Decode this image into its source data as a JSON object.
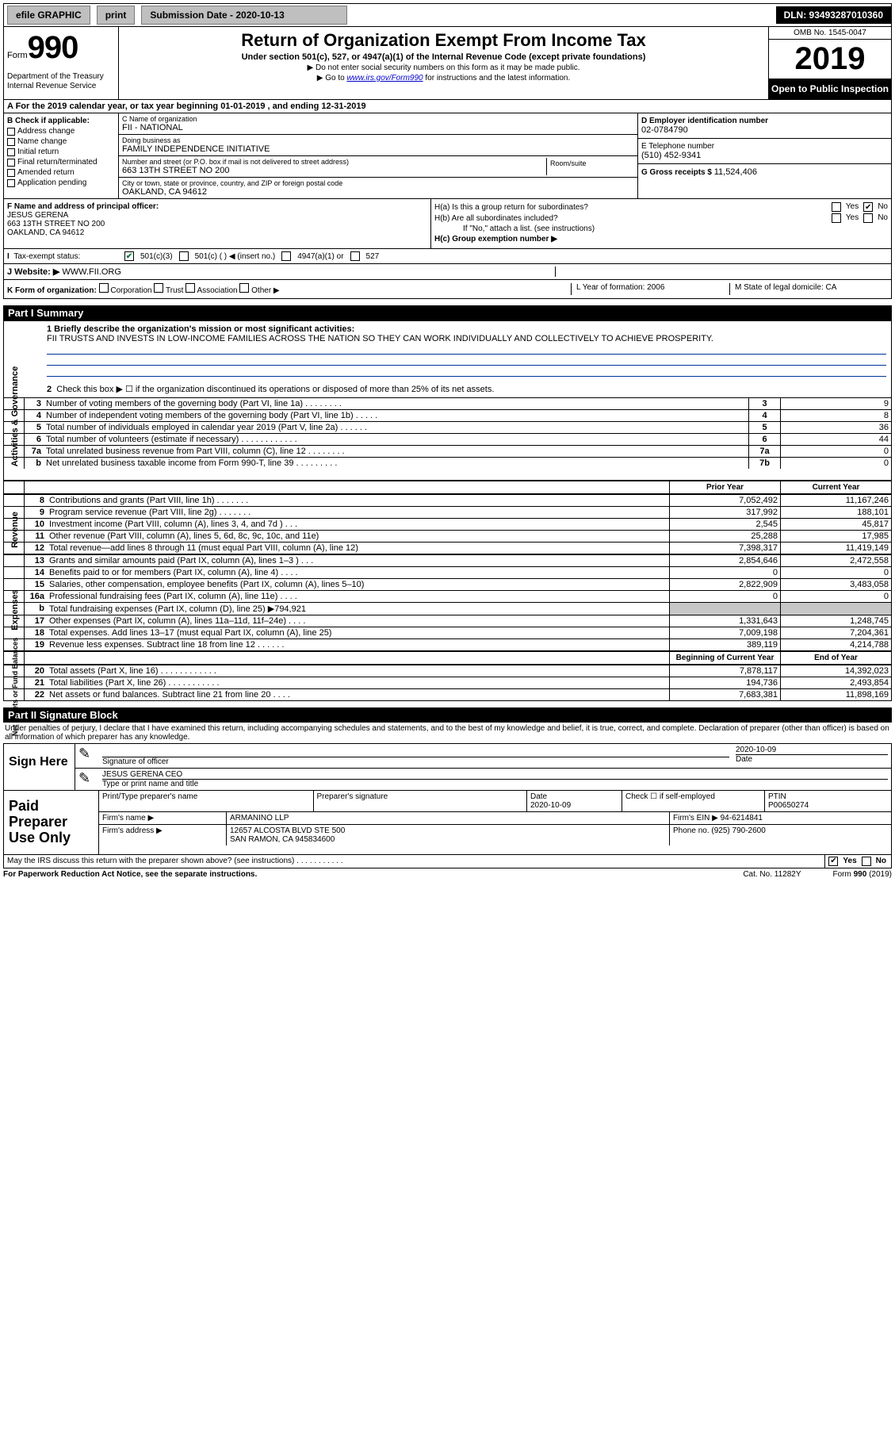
{
  "topbar": {
    "efile": "efile GRAPHIC",
    "print": "print",
    "subdate_label": "Submission Date - 2020-10-13",
    "dln": "DLN: 93493287010360"
  },
  "header": {
    "form_word": "Form",
    "form_num": "990",
    "dept1": "Department of the Treasury",
    "dept2": "Internal Revenue Service",
    "title": "Return of Organization Exempt From Income Tax",
    "sub1": "Under section 501(c), 527, or 4947(a)(1) of the Internal Revenue Code (except private foundations)",
    "sub2": "Do not enter social security numbers on this form as it may be made public.",
    "sub3a": "Go to ",
    "sub3_link": "www.irs.gov/Form990",
    "sub3b": " for instructions and the latest information.",
    "omb": "OMB No. 1545-0047",
    "year": "2019",
    "open": "Open to Public Inspection"
  },
  "rowA": "A For the 2019 calendar year, or tax year beginning 01-01-2019    , and ending 12-31-2019",
  "boxB": {
    "label": "B Check if applicable:",
    "items": [
      "Address change",
      "Name change",
      "Initial return",
      "Final return/terminated",
      "Amended return",
      "Application pending"
    ]
  },
  "boxC": {
    "name_label": "C Name of organization",
    "name": "FII - NATIONAL",
    "dba_label": "Doing business as",
    "dba": "FAMILY INDEPENDENCE INITIATIVE",
    "addr_label": "Number and street (or P.O. box if mail is not delivered to street address)",
    "room_label": "Room/suite",
    "addr": "663 13TH STREET NO 200",
    "city_label": "City or town, state or province, country, and ZIP or foreign postal code",
    "city": "OAKLAND, CA  94612"
  },
  "boxD": {
    "label": "D Employer identification number",
    "val": "02-0784790"
  },
  "boxE": {
    "label": "E Telephone number",
    "val": "(510) 452-9341"
  },
  "boxG": {
    "label": "G Gross receipts $",
    "val": "11,524,406"
  },
  "boxF": {
    "label": "F  Name and address of principal officer:",
    "name": "JESUS GERENA",
    "addr1": "663 13TH STREET NO 200",
    "addr2": "OAKLAND, CA  94612"
  },
  "boxH": {
    "ha": "H(a)  Is this a group return for subordinates?",
    "hb": "H(b)  Are all subordinates included?",
    "hb2": "If \"No,\" attach a list. (see instructions)",
    "hc": "H(c)  Group exemption number ▶",
    "yes": "Yes",
    "no": "No"
  },
  "taxExempt": {
    "label": "Tax-exempt status:",
    "opt1": "501(c)(3)",
    "opt2": "501(c) (   ) ◀ (insert no.)",
    "opt3": "4947(a)(1) or",
    "opt4": "527"
  },
  "websiteRow": {
    "label": "J   Website: ▶",
    "val": "WWW.FII.ORG"
  },
  "rowK": {
    "label": "K Form of organization:",
    "opts": [
      "Corporation",
      "Trust",
      "Association",
      "Other ▶"
    ],
    "L": "L Year of formation: 2006",
    "M": "M State of legal domicile: CA"
  },
  "part1": {
    "bar": "Part I      Summary",
    "side_ag": "Activities & Governance",
    "side_rev": "Revenue",
    "side_exp": "Expenses",
    "side_net": "Net Assets or Fund Balances",
    "l1": "1  Briefly describe the organization's mission or most significant activities:",
    "mission": "FII TRUSTS AND INVESTS IN LOW-INCOME FAMILIES ACROSS THE NATION SO THEY CAN WORK INDIVIDUALLY AND COLLECTIVELY TO ACHIEVE PROSPERITY.",
    "l2": "Check this box ▶ ☐  if the organization discontinued its operations or disposed of more than 25% of its net assets.",
    "lines_ag": [
      {
        "n": "3",
        "t": "Number of voting members of the governing body (Part VI, line 1a)   .    .    .    .    .    .    .    .",
        "c": "3",
        "v": "9"
      },
      {
        "n": "4",
        "t": "Number of independent voting members of the governing body (Part VI, line 1b)   .    .    .    .    .",
        "c": "4",
        "v": "8"
      },
      {
        "n": "5",
        "t": "Total number of individuals employed in calendar year 2019 (Part V, line 2a)   .    .    .    .    .    .",
        "c": "5",
        "v": "36"
      },
      {
        "n": "6",
        "t": "Total number of volunteers (estimate if necessary)    .    .    .    .    .    .    .    .    .    .    .    .",
        "c": "6",
        "v": "44"
      },
      {
        "n": "7a",
        "t": "Total unrelated business revenue from Part VIII, column (C), line 12   .    .    .    .    .    .    .    .",
        "c": "7a",
        "v": "0"
      },
      {
        "n": "b",
        "t": "Net unrelated business taxable income from Form 990-T, line 39   .    .    .    .    .    .    .    .    .",
        "c": "7b",
        "v": "0"
      }
    ],
    "head_py": "Prior Year",
    "head_cy": "Current Year",
    "lines_rev": [
      {
        "n": "8",
        "t": "Contributions and grants (Part VIII, line 1h)   .    .    .    .    .    .    .",
        "py": "7,052,492",
        "cy": "11,167,246"
      },
      {
        "n": "9",
        "t": "Program service revenue (Part VIII, line 2g)   .    .    .    .    .    .    .",
        "py": "317,992",
        "cy": "188,101"
      },
      {
        "n": "10",
        "t": "Investment income (Part VIII, column (A), lines 3, 4, and 7d )   .    .    .",
        "py": "2,545",
        "cy": "45,817"
      },
      {
        "n": "11",
        "t": "Other revenue (Part VIII, column (A), lines 5, 6d, 8c, 9c, 10c, and 11e)",
        "py": "25,288",
        "cy": "17,985"
      },
      {
        "n": "12",
        "t": "Total revenue—add lines 8 through 11 (must equal Part VIII, column (A), line 12)",
        "py": "7,398,317",
        "cy": "11,419,149"
      }
    ],
    "lines_exp": [
      {
        "n": "13",
        "t": "Grants and similar amounts paid (Part IX, column (A), lines 1–3 )   .    .    .",
        "py": "2,854,646",
        "cy": "2,472,558"
      },
      {
        "n": "14",
        "t": "Benefits paid to or for members (Part IX, column (A), line 4)   .    .    .    .",
        "py": "0",
        "cy": "0"
      },
      {
        "n": "15",
        "t": "Salaries, other compensation, employee benefits (Part IX, column (A), lines 5–10)",
        "py": "2,822,909",
        "cy": "3,483,058"
      },
      {
        "n": "16a",
        "t": "Professional fundraising fees (Part IX, column (A), line 11e)   .    .    .    .",
        "py": "0",
        "cy": "0"
      },
      {
        "n": "b",
        "t": "Total fundraising expenses (Part IX, column (D), line 25) ▶794,921",
        "py": "",
        "cy": "",
        "grey": true
      },
      {
        "n": "17",
        "t": "Other expenses (Part IX, column (A), lines 11a–11d, 11f–24e)   .    .    .    .",
        "py": "1,331,643",
        "cy": "1,248,745"
      },
      {
        "n": "18",
        "t": "Total expenses. Add lines 13–17 (must equal Part IX, column (A), line 25)",
        "py": "7,009,198",
        "cy": "7,204,361"
      },
      {
        "n": "19",
        "t": "Revenue less expenses. Subtract line 18 from line 12   .    .    .    .    .    .",
        "py": "389,119",
        "cy": "4,214,788"
      }
    ],
    "head2_py": "Beginning of Current Year",
    "head2_cy": "End of Year",
    "lines_net": [
      {
        "n": "20",
        "t": "Total assets (Part X, line 16)   .    .    .    .    .    .    .    .    .    .    .    .",
        "py": "7,878,117",
        "cy": "14,392,023"
      },
      {
        "n": "21",
        "t": "Total liabilities (Part X, line 26)   .    .    .    .    .    .    .    .    .    .    .",
        "py": "194,736",
        "cy": "2,493,854"
      },
      {
        "n": "22",
        "t": "Net assets or fund balances. Subtract line 21 from line 20   .    .    .    .",
        "py": "7,683,381",
        "cy": "11,898,169"
      }
    ]
  },
  "part2bar": "Part II     Signature Block",
  "sig": {
    "decl": "Under penalties of perjury, I declare that I have examined this return, including accompanying schedules and statements, and to the best of my knowledge and belief, it is true, correct, and complete. Declaration of preparer (other than officer) is based on all information of which preparer has any knowledge.",
    "sign_here": "Sign Here",
    "sig_officer": "Signature of officer",
    "date": "2020-10-09",
    "date_lbl": "Date",
    "name_title": "JESUS GERENA CEO",
    "type_lbl": "Type or print name and title",
    "paid": "Paid Preparer Use Only",
    "p_name_lbl": "Print/Type preparer's name",
    "p_sig_lbl": "Preparer's signature",
    "p_date_lbl": "Date",
    "p_date": "2020-10-09",
    "p_check": "Check ☐  if self-employed",
    "ptin_lbl": "PTIN",
    "ptin": "P00650274",
    "firm_name_lbl": "Firm's name     ▶",
    "firm_name": "ARMANINO LLP",
    "firm_ein_lbl": "Firm's EIN ▶",
    "firm_ein": "94-6214841",
    "firm_addr_lbl": "Firm's address ▶",
    "firm_addr1": "12657 ALCOSTA BLVD STE 500",
    "firm_addr2": "SAN RAMON, CA  945834600",
    "phone_lbl": "Phone no.",
    "phone": "(925) 790-2600",
    "irs_q": "May the IRS discuss this return with the preparer shown above? (see instructions)   .    .    .    .    .    .    .    .    .    .    .",
    "yes": "Yes",
    "no": "No"
  },
  "footer": {
    "left": "For Paperwork Reduction Act Notice, see the separate instructions.",
    "mid": "Cat. No. 11282Y",
    "right": "Form 990 (2019)"
  }
}
